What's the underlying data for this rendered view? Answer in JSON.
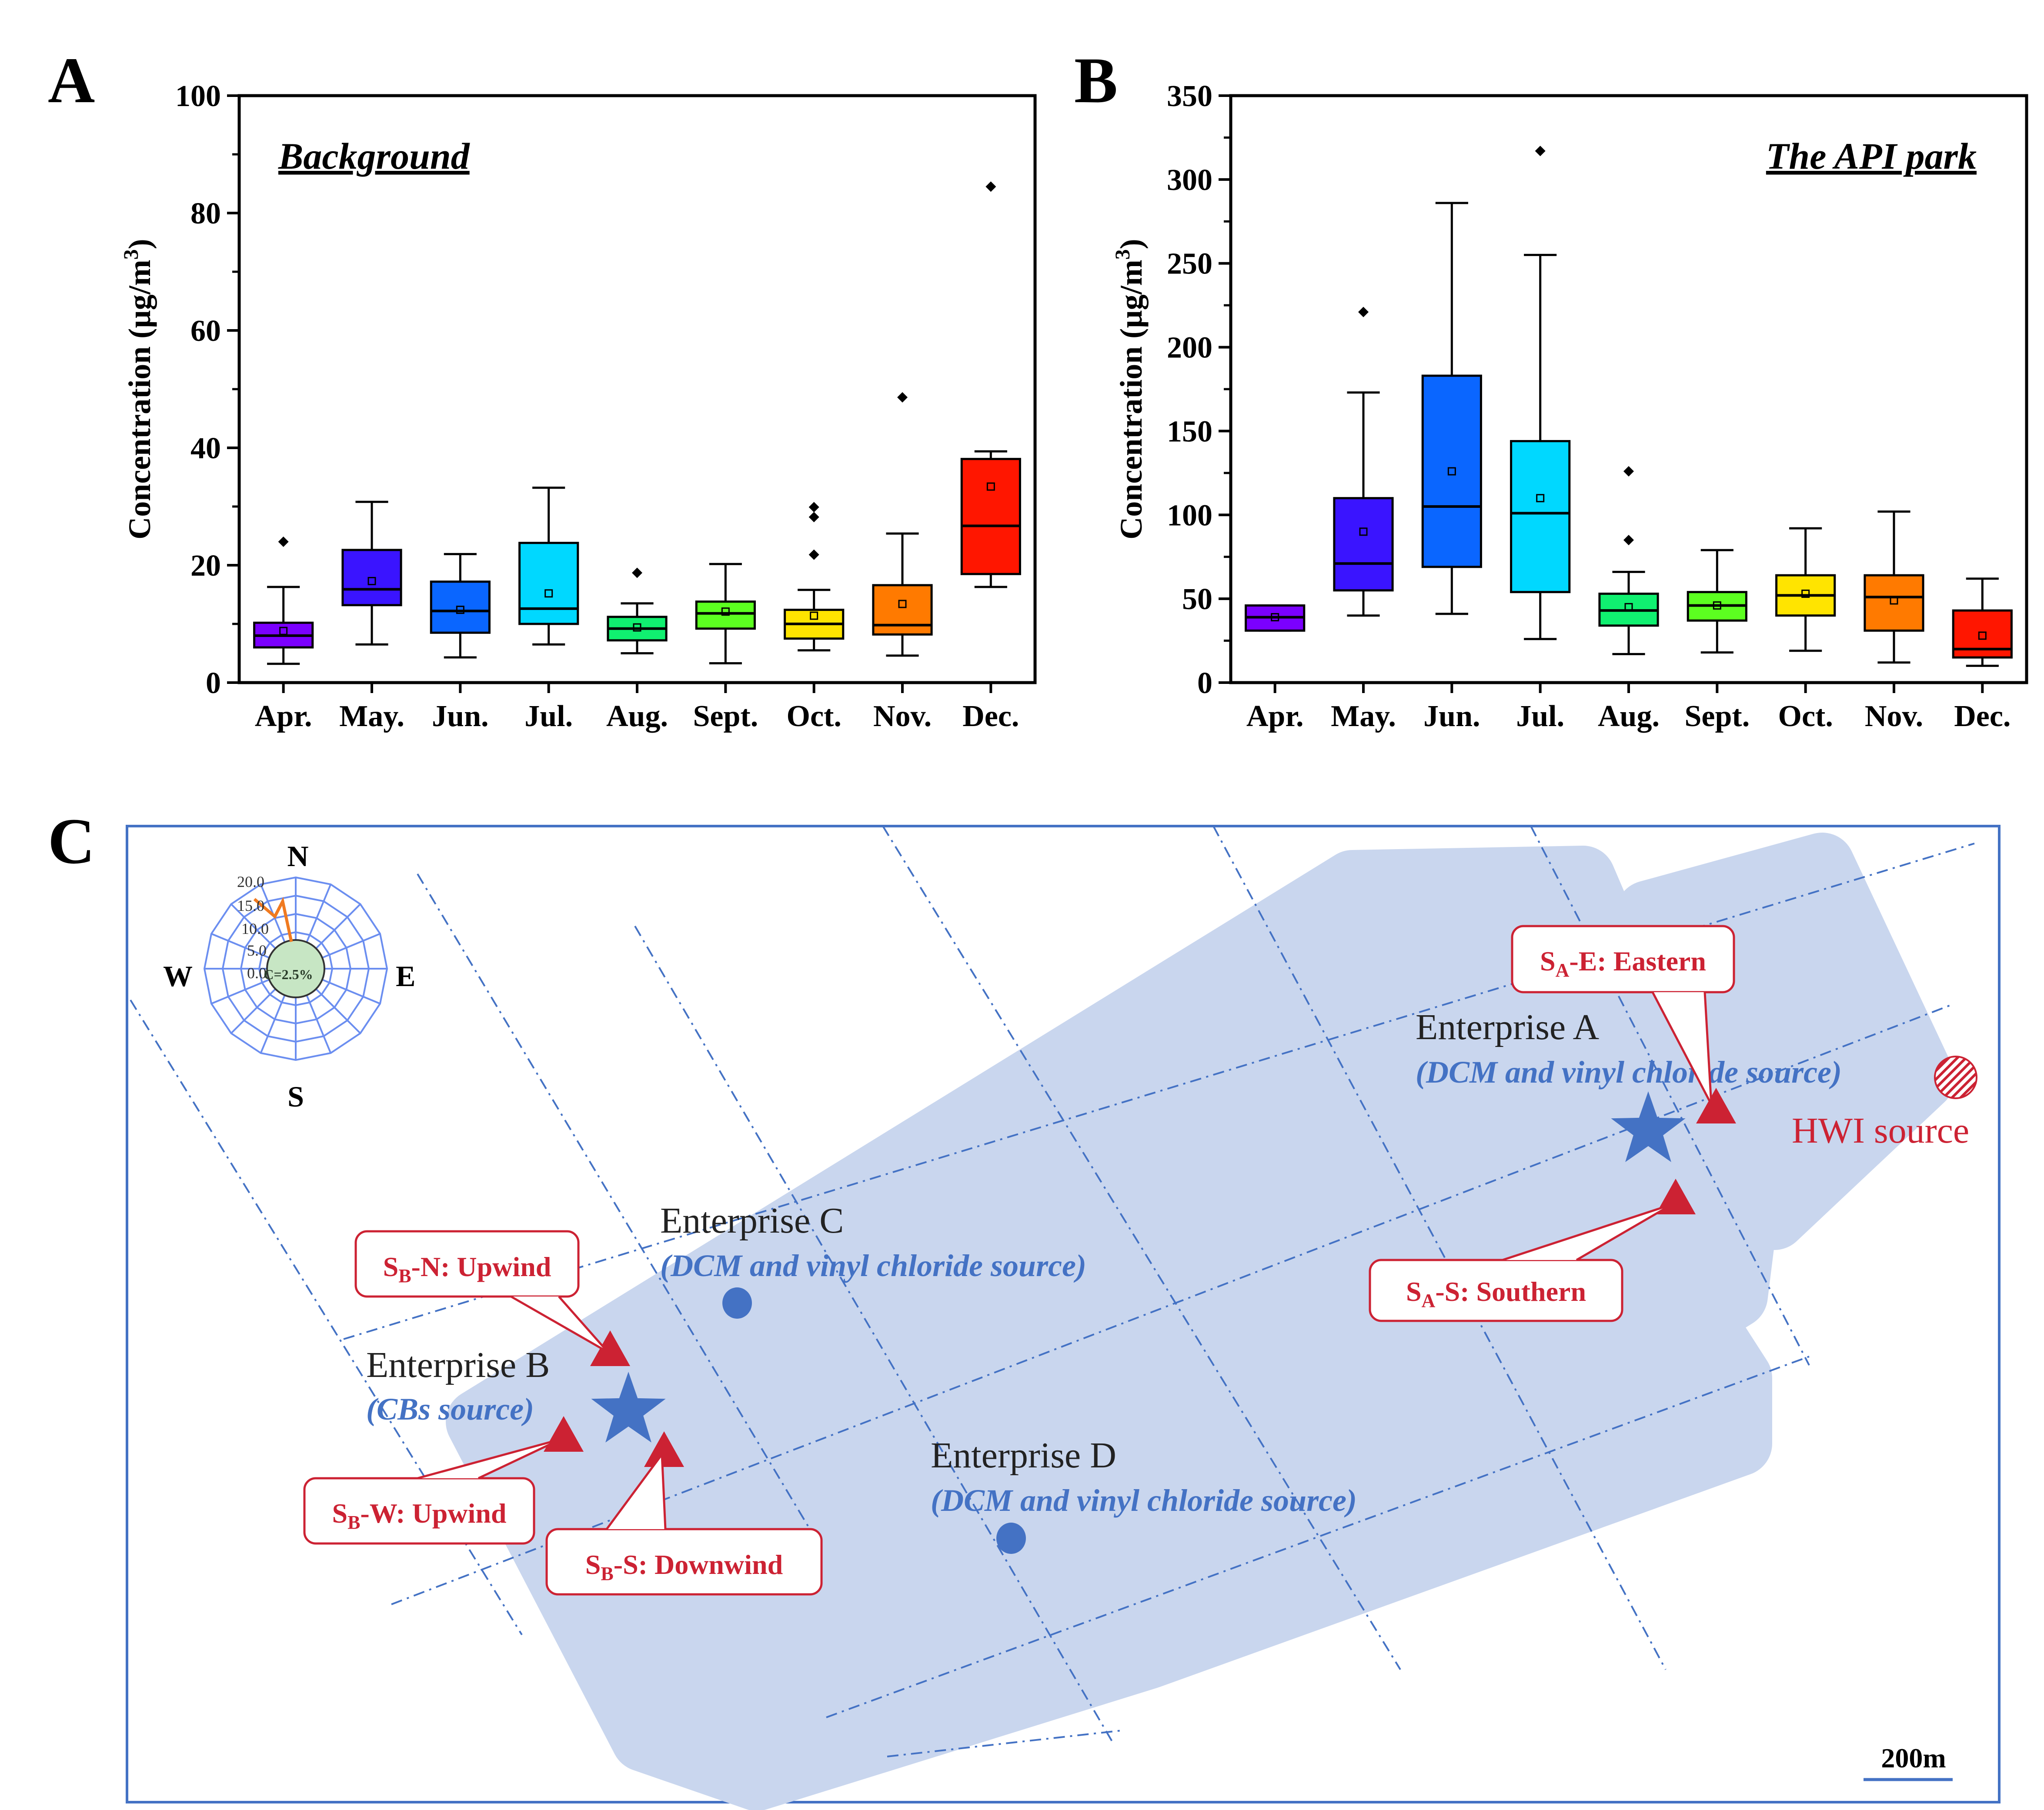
{
  "panels": {
    "a": "A",
    "b": "B",
    "c": "C"
  },
  "chart_data": [
    {
      "type": "box",
      "panel": "A",
      "annotation": "Background",
      "ylabel": "Concentration (µg/m",
      "ylabel_sup": "3",
      "ylabel_close": ")",
      "ylim": [
        0,
        100
      ],
      "yticks": [
        0,
        20,
        40,
        60,
        80,
        100
      ],
      "categories": [
        "Apr.",
        "May.",
        "Jun.",
        "Jul.",
        "Aug.",
        "Sept.",
        "Oct.",
        "Nov.",
        "Dec."
      ],
      "colors": [
        "#7b00ff",
        "#3a14ff",
        "#0a66ff",
        "#00d8ff",
        "#10f070",
        "#5cff20",
        "#ffe400",
        "#ff7a00",
        "#ff1600"
      ],
      "boxes": [
        {
          "min": 3.2,
          "q1": 6.0,
          "median": 8.0,
          "q3": 10.2,
          "max": 16.3,
          "mean": 8.8,
          "outliers": [
            24.0
          ]
        },
        {
          "min": 6.5,
          "q1": 13.2,
          "median": 15.9,
          "q3": 22.6,
          "max": 30.8,
          "mean": 17.3,
          "outliers": []
        },
        {
          "min": 4.3,
          "q1": 8.5,
          "median": 12.2,
          "q3": 17.2,
          "max": 21.9,
          "mean": 12.4,
          "outliers": []
        },
        {
          "min": 6.5,
          "q1": 10.0,
          "median": 12.6,
          "q3": 23.8,
          "max": 33.2,
          "mean": 15.2,
          "outliers": []
        },
        {
          "min": 5.0,
          "q1": 7.2,
          "median": 9.2,
          "q3": 11.2,
          "max": 13.5,
          "mean": 9.4,
          "outliers": [
            18.7
          ]
        },
        {
          "min": 3.3,
          "q1": 9.2,
          "median": 11.8,
          "q3": 13.8,
          "max": 20.2,
          "mean": 12.1,
          "outliers": []
        },
        {
          "min": 5.5,
          "q1": 7.5,
          "median": 10.0,
          "q3": 12.4,
          "max": 15.8,
          "mean": 11.4,
          "outliers": [
            21.8,
            28.2,
            29.9
          ]
        },
        {
          "min": 4.6,
          "q1": 8.2,
          "median": 9.8,
          "q3": 16.6,
          "max": 25.4,
          "mean": 13.4,
          "outliers": [
            48.6
          ]
        },
        {
          "min": 16.3,
          "q1": 18.5,
          "median": 26.7,
          "q3": 38.1,
          "max": 39.4,
          "mean": 33.4,
          "outliers": [
            84.5
          ]
        }
      ]
    },
    {
      "type": "box",
      "panel": "B",
      "annotation": "The API park",
      "ylabel": "Concentration (µg/m",
      "ylabel_sup": "3",
      "ylabel_close": ")",
      "ylim": [
        0,
        350
      ],
      "yticks": [
        0,
        50,
        100,
        150,
        200,
        250,
        300,
        350
      ],
      "categories": [
        "Apr.",
        "May.",
        "Jun.",
        "Jul.",
        "Aug.",
        "Sept.",
        "Oct.",
        "Nov.",
        "Dec."
      ],
      "colors": [
        "#7b00ff",
        "#3a14ff",
        "#0a66ff",
        "#00d8ff",
        "#10f070",
        "#5cff20",
        "#ffe400",
        "#ff7a00",
        "#ff1600"
      ],
      "boxes": [
        {
          "min": 31,
          "q1": 31,
          "median": 39,
          "q3": 46,
          "max": 46,
          "mean": 39,
          "outliers": []
        },
        {
          "min": 40,
          "q1": 55,
          "median": 71,
          "q3": 110,
          "max": 173,
          "mean": 90,
          "outliers": [
            221
          ]
        },
        {
          "min": 41,
          "q1": 69,
          "median": 105,
          "q3": 183,
          "max": 286,
          "mean": 126,
          "outliers": []
        },
        {
          "min": 26,
          "q1": 54,
          "median": 101,
          "q3": 144,
          "max": 255,
          "mean": 110,
          "outliers": [
            317
          ]
        },
        {
          "min": 17,
          "q1": 34,
          "median": 43,
          "q3": 53,
          "max": 66,
          "mean": 45,
          "outliers": [
            85,
            126
          ]
        },
        {
          "min": 18,
          "q1": 37,
          "median": 46,
          "q3": 54,
          "max": 79,
          "mean": 46,
          "outliers": []
        },
        {
          "min": 19,
          "q1": 40,
          "median": 52,
          "q3": 64,
          "max": 92,
          "mean": 53,
          "outliers": []
        },
        {
          "min": 12,
          "q1": 31,
          "median": 51,
          "q3": 64,
          "max": 102,
          "mean": 49,
          "outliers": []
        },
        {
          "min": 10,
          "q1": 15,
          "median": 20,
          "q3": 43,
          "max": 62,
          "mean": 28,
          "outliers": []
        }
      ]
    }
  ],
  "map": {
    "compass": {
      "north": "N",
      "east": "E",
      "south": "S",
      "west": "W",
      "rings": [
        "20.0",
        "15.0",
        "10.0",
        "5.0",
        "0.0"
      ],
      "calm": "C=2.5%"
    },
    "enterprises": [
      {
        "name": "Enterprise A",
        "source": "(DCM and vinyl chloride source)"
      },
      {
        "name": "Enterprise B",
        "source": "(CBs source)"
      },
      {
        "name": "Enterprise C",
        "source": "(DCM and vinyl chloride source)"
      },
      {
        "name": "Enterprise D",
        "source": "(DCM and vinyl chloride source)"
      }
    ],
    "hwi": "HWI source",
    "sites": [
      {
        "sub": "A",
        "label": "-E: Eastern"
      },
      {
        "sub": "A",
        "label": "-S: Southern"
      },
      {
        "sub": "B",
        "label": "-N: Upwind"
      },
      {
        "sub": "B",
        "label": "-W: Upwind"
      },
      {
        "sub": "B",
        "label": "-S: Downwind"
      }
    ],
    "site_prefix": "S",
    "scale": "200m",
    "colors": {
      "park": "#c9d6ee",
      "frame": "#4472c4",
      "site": "#cc2233",
      "source": "#4472c4"
    }
  }
}
